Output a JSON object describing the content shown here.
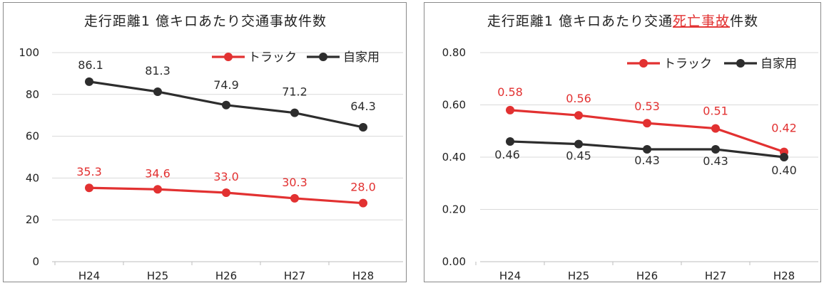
{
  "chart_data": [
    {
      "type": "line",
      "title_parts": [
        {
          "text": "走行距離1 億キロあたり交通事故件数",
          "highlight": false
        }
      ],
      "categories": [
        "H24",
        "H25",
        "H26",
        "H27",
        "H28"
      ],
      "ylim": [
        0,
        100
      ],
      "yticks": [
        "0",
        "20",
        "40",
        "60",
        "80",
        "100"
      ],
      "ytick_values": [
        0,
        20,
        40,
        60,
        80,
        100
      ],
      "grid": true,
      "legend_position": "top-right",
      "series": [
        {
          "name": "トラック",
          "color": "#e23131",
          "values": [
            35.3,
            34.6,
            33.0,
            30.3,
            28.0
          ],
          "labels": [
            "35.3",
            "34.6",
            "33.0",
            "30.3",
            "28.0"
          ]
        },
        {
          "name": "自家用",
          "color": "#2d2d2d",
          "values": [
            86.1,
            81.3,
            74.9,
            71.2,
            64.3
          ],
          "labels": [
            "86.1",
            "81.3",
            "74.9",
            "71.2",
            "64.3"
          ]
        }
      ]
    },
    {
      "type": "line",
      "title_parts": [
        {
          "text": "走行距離1 億キロあたり交通",
          "highlight": false
        },
        {
          "text": "死亡事故",
          "highlight": true
        },
        {
          "text": "件数",
          "highlight": false
        }
      ],
      "categories": [
        "H24",
        "H25",
        "H26",
        "H27",
        "H28"
      ],
      "ylim": [
        0,
        0.8
      ],
      "yticks": [
        "0.00",
        "0.20",
        "0.40",
        "0.60",
        "0.80"
      ],
      "ytick_values": [
        0,
        0.2,
        0.4,
        0.6,
        0.8
      ],
      "grid": true,
      "legend_position": "top-right",
      "series": [
        {
          "name": "トラック",
          "color": "#e23131",
          "values": [
            0.58,
            0.56,
            0.53,
            0.51,
            0.42
          ],
          "labels": [
            "0.58",
            "0.56",
            "0.53",
            "0.51",
            "0.42"
          ]
        },
        {
          "name": "自家用",
          "color": "#2d2d2d",
          "values": [
            0.46,
            0.45,
            0.43,
            0.43,
            0.4
          ],
          "labels": [
            "0.46",
            "0.45",
            "0.43",
            "0.43",
            "0.40"
          ]
        }
      ]
    }
  ]
}
